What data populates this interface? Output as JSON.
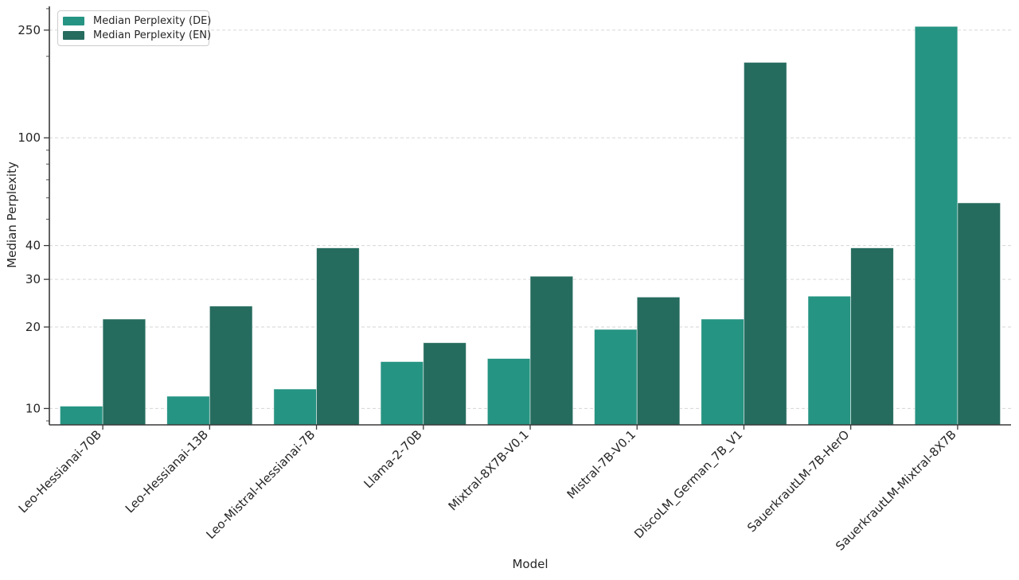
{
  "chart_data": {
    "type": "bar",
    "title": "",
    "xlabel": "Model",
    "ylabel": "Median Perplexity",
    "yscale": "log",
    "ylim": [
      8.7,
      306
    ],
    "yticks": [
      10,
      20,
      30,
      40,
      100,
      250
    ],
    "minor_yticks": [
      9,
      50,
      60,
      70,
      80,
      90,
      200,
      300
    ],
    "grid": "horizontal dashed at major yticks",
    "legend_position": "upper-left",
    "categories": [
      "Leo-Hessianai-70B",
      "Leo-Hessianai-13B",
      "Leo-Mistral-Hessianai-7B",
      "Llama-2-70B",
      "Mixtral-8X7B-V0.1",
      "Mistral-7B-V0.1",
      "DiscoLM_German_7B_V1",
      "SauerkrautLM-7B-HerO",
      "SauerkrautLM-Mixtral-8X7B"
    ],
    "series": [
      {
        "name": "Median Perplexity (DE)",
        "color": "#269483",
        "values": [
          10.2,
          11.1,
          11.8,
          14.9,
          15.3,
          19.6,
          21.4,
          26.0,
          258
        ]
      },
      {
        "name": "Median Perplexity (EN)",
        "color": "#266c5e",
        "values": [
          21.4,
          23.9,
          39.2,
          17.5,
          30.8,
          25.8,
          190,
          39.2,
          57.5
        ]
      }
    ],
    "colors": {
      "background": "#ffffff",
      "grid": "#d6d6d6",
      "axis": "#3a3a3a",
      "text": "#262626",
      "bar_edge": "rgba(255,255,255,0.65)"
    }
  }
}
